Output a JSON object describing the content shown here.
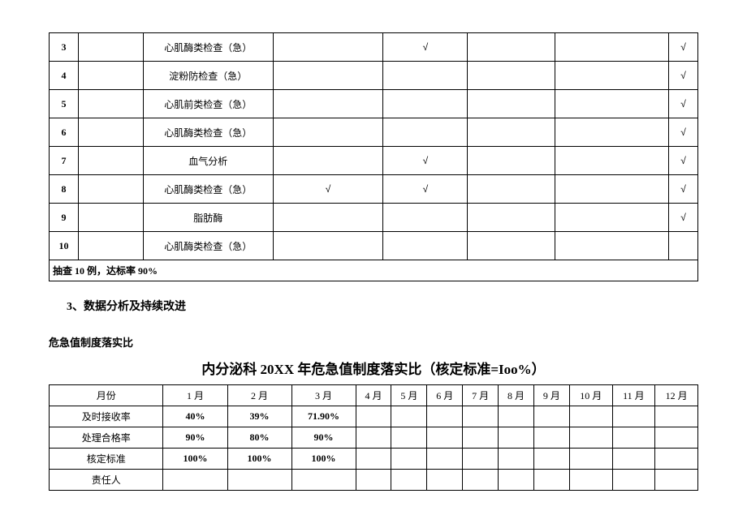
{
  "table1": {
    "rows": [
      {
        "num": "3",
        "name": "心肌酶类检查（急）",
        "c1": "",
        "c2": "√",
        "c3": "",
        "c4": "",
        "c5": "√"
      },
      {
        "num": "4",
        "name": "淀粉防检查（急）",
        "c1": "",
        "c2": "",
        "c3": "",
        "c4": "",
        "c5": "√"
      },
      {
        "num": "5",
        "name": "心肌前类检查（急）",
        "c1": "",
        "c2": "",
        "c3": "",
        "c4": "",
        "c5": "√"
      },
      {
        "num": "6",
        "name": "心肌酶类检查（急）",
        "c1": "",
        "c2": "",
        "c3": "",
        "c4": "",
        "c5": "√"
      },
      {
        "num": "7",
        "name": "血气分析",
        "c1": "",
        "c2": "√",
        "c3": "",
        "c4": "",
        "c5": "√"
      },
      {
        "num": "8",
        "name": "心肌酶类检查（急）",
        "c1": "√",
        "c2": "√",
        "c3": "",
        "c4": "",
        "c5": "√"
      },
      {
        "num": "9",
        "name": "脂肪酶",
        "c1": "",
        "c2": "",
        "c3": "",
        "c4": "",
        "c5": "√"
      },
      {
        "num": "10",
        "name": "心肌酶类检查（急）",
        "c1": "",
        "c2": "",
        "c3": "",
        "c4": "",
        "c5": ""
      }
    ],
    "summary": "抽查 10 例，达标率 90%"
  },
  "heading": "3、数据分析及持续改进",
  "subheading": "危急值制度落实比",
  "title": "内分泌科 20XX 年危急值制度落实比（核定标准=Ioo%）",
  "table2": {
    "header_label": "月份",
    "months": [
      "1 月",
      "2 月",
      "3 月",
      "4 月",
      "5 月",
      "6 月",
      "7 月",
      "8 月",
      "9 月",
      "10 月",
      "11 月",
      "12 月"
    ],
    "rows": [
      {
        "label": "及时接收率",
        "v1": "40%",
        "v2": "39%",
        "v3": "71.90%"
      },
      {
        "label": "处理合格率",
        "v1": "90%",
        "v2": "80%",
        "v3": "90%"
      },
      {
        "label": "核定标准",
        "v1": "100%",
        "v2": "100%",
        "v3": "100%"
      },
      {
        "label": "责任人",
        "v1": "",
        "v2": "",
        "v3": ""
      }
    ]
  }
}
